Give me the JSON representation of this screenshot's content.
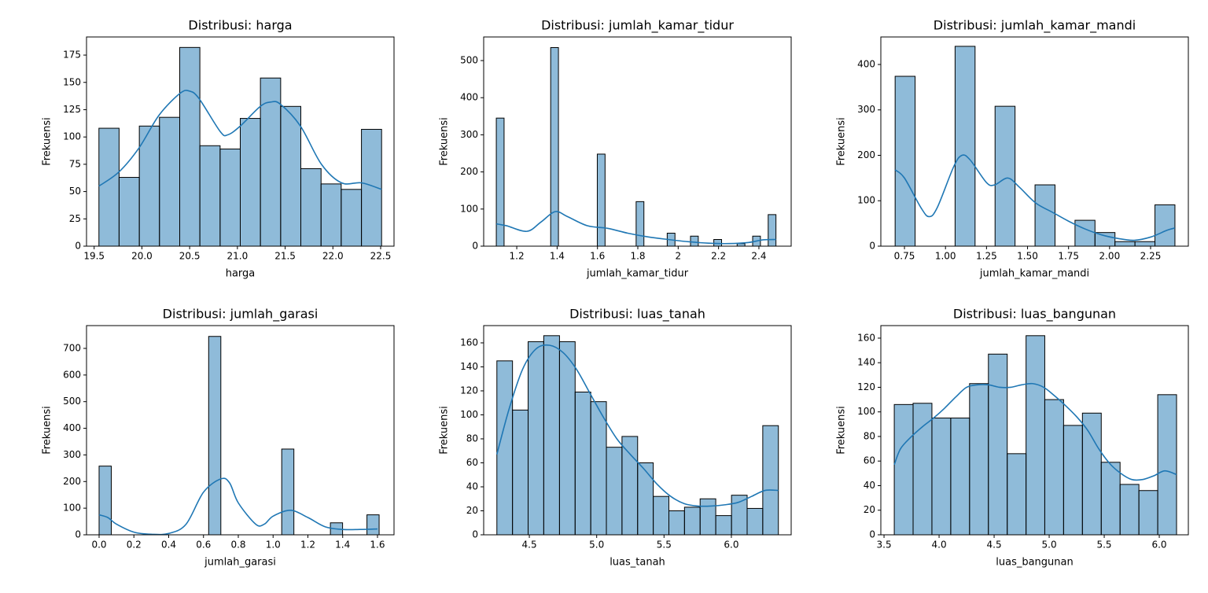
{
  "chart_data": [
    {
      "type": "histogram",
      "title": "Distribusi: harga",
      "xlabel": "harga",
      "ylabel": "Frekuensi",
      "color": "#1f77b4",
      "bins": [
        19.55,
        19.761,
        19.973,
        20.184,
        20.396,
        20.607,
        20.819,
        21.03,
        21.241,
        21.453,
        21.664,
        21.876,
        22.087,
        22.299,
        22.51
      ],
      "counts": [
        108,
        63,
        110,
        118,
        182,
        92,
        89,
        117,
        154,
        128,
        71,
        57,
        52,
        107
      ],
      "kde": {
        "x": [
          19.55,
          19.76,
          19.97,
          20.18,
          20.4,
          20.5,
          20.6,
          20.82,
          20.9,
          21.03,
          21.24,
          21.35,
          21.45,
          21.66,
          21.88,
          22.09,
          22.3,
          22.51
        ],
        "values": [
          55,
          68,
          90,
          120,
          140,
          142,
          135,
          105,
          102,
          110,
          128,
          132,
          130,
          110,
          75,
          58,
          58,
          52
        ]
      },
      "xlim": [
        19.42,
        22.64
      ],
      "ylim": [
        0,
        191.6
      ],
      "xticks": [
        19.5,
        {
          "value": 20,
          "label": "20.0"
        },
        20.5,
        {
          "value": 21,
          "label": "21.0"
        },
        21.5,
        {
          "value": 22,
          "label": "22.0"
        },
        22.5
      ],
      "yticks": [
        0,
        25,
        50,
        75,
        100,
        125,
        150,
        175
      ]
    },
    {
      "type": "histogram",
      "title": "Distribusi: jumlah_kamar_tidur",
      "xlabel": "jumlah_kamar_tidur",
      "ylabel": "Frekuensi",
      "color": "#1f77b4",
      "bins": [
        1.0986,
        1.1371,
        1.1756,
        1.2141,
        1.2526,
        1.2911,
        1.3296,
        1.3681,
        1.4066,
        1.4451,
        1.4836,
        1.5221,
        1.5606,
        1.5991,
        1.6376,
        1.6761,
        1.7146,
        1.7531,
        1.7916,
        1.8301,
        1.8686,
        1.9071,
        1.9456,
        1.9841,
        2.0226,
        2.0611,
        2.0996,
        2.1381,
        2.1766,
        2.2151,
        2.2536,
        2.2921,
        2.3306,
        2.3691,
        2.4076,
        2.4461,
        2.4846
      ],
      "counts": [
        345,
        0,
        0,
        0,
        0,
        0,
        0,
        535,
        0,
        0,
        0,
        0,
        0,
        248,
        0,
        0,
        0,
        0,
        120,
        0,
        0,
        0,
        35,
        0,
        0,
        27,
        0,
        0,
        18,
        0,
        0,
        7,
        0,
        27,
        0,
        85
      ],
      "kde": {
        "x": [
          1.0986,
          1.15,
          1.25,
          1.32,
          1.39,
          1.45,
          1.55,
          1.65,
          1.75,
          1.85,
          1.95,
          2.05,
          2.15,
          2.25,
          2.35,
          2.42,
          2.485
        ],
        "values": [
          60,
          55,
          40,
          65,
          93,
          80,
          55,
          48,
          35,
          25,
          18,
          12,
          8,
          7,
          10,
          17,
          18
        ]
      },
      "xlim": [
        1.036,
        2.56
      ],
      "ylim": [
        0,
        563.6
      ],
      "xticks": [
        1.2,
        1.4,
        1.6,
        1.8,
        2.0,
        2.2,
        2.4
      ],
      "yticks": [
        0,
        100,
        200,
        300,
        400,
        500
      ]
    },
    {
      "type": "histogram",
      "title": "Distribusi: jumlah_kamar_mandi",
      "xlabel": "jumlah_kamar_mandi",
      "ylabel": "Frekuensi",
      "color": "#1f77b4",
      "bins": [
        0.6931,
        0.8149,
        0.9367,
        1.0585,
        1.1803,
        1.3021,
        1.4239,
        1.5457,
        1.6675,
        1.7893,
        1.9111,
        2.0329,
        2.1547,
        2.2765,
        2.3983
      ],
      "counts": [
        374,
        0,
        0,
        440,
        0,
        308,
        0,
        135,
        0,
        57,
        30,
        10,
        10,
        91
      ],
      "kde": {
        "x": [
          0.693,
          0.75,
          0.85,
          0.9,
          0.95,
          1.05,
          1.1,
          1.15,
          1.25,
          1.3,
          1.38,
          1.45,
          1.55,
          1.65,
          1.75,
          1.85,
          1.95,
          2.05,
          2.15,
          2.25,
          2.35,
          2.398
        ],
        "values": [
          168,
          150,
          85,
          65,
          85,
          175,
          200,
          190,
          140,
          135,
          150,
          130,
          95,
          75,
          55,
          38,
          25,
          17,
          13,
          20,
          35,
          40
        ]
      },
      "xlim": [
        0.606,
        2.48
      ],
      "ylim": [
        0,
        460.6
      ],
      "xticks": [
        0.75,
        {
          "value": 1,
          "label": "1.00"
        },
        1.25,
        {
          "value": 1.5,
          "label": "1.50"
        },
        1.75,
        {
          "value": 2,
          "label": "2.00"
        },
        2.25
      ],
      "yticks": [
        0,
        100,
        200,
        300,
        400
      ]
    },
    {
      "type": "histogram",
      "title": "Distribusi: jumlah_garasi",
      "xlabel": "jumlah_garasi",
      "ylabel": "Frekuensi",
      "color": "#1f77b4",
      "bins": [
        0,
        0.07,
        0.1399,
        0.2099,
        0.2799,
        0.3499,
        0.4198,
        0.4898,
        0.5598,
        0.6297,
        0.6997,
        0.7697,
        0.8397,
        0.9096,
        0.9796,
        1.0496,
        1.1195,
        1.1895,
        1.2595,
        1.3294,
        1.3994,
        1.4694,
        1.5394,
        1.6094
      ],
      "counts": [
        258,
        0,
        0,
        0,
        0,
        0,
        0,
        0,
        0,
        745,
        0,
        0,
        0,
        0,
        0,
        322,
        0,
        0,
        0,
        45,
        0,
        0,
        75
      ],
      "kde": {
        "x": [
          0,
          0.05,
          0.1,
          0.2,
          0.3,
          0.4,
          0.5,
          0.6,
          0.7,
          0.75,
          0.8,
          0.9,
          0.95,
          1.0,
          1.1,
          1.2,
          1.3,
          1.4,
          1.5,
          1.6
        ],
        "values": [
          75,
          65,
          40,
          10,
          2,
          5,
          40,
          160,
          210,
          195,
          120,
          40,
          40,
          70,
          92,
          65,
          30,
          20,
          20,
          22
        ]
      },
      "xlim": [
        -0.0723,
        1.695
      ],
      "ylim": [
        0,
        785.6
      ],
      "xticks": [
        {
          "value": 0,
          "label": "0.0"
        },
        0.2,
        0.4,
        0.6,
        0.8,
        {
          "value": 1,
          "label": "1.0"
        },
        1.2,
        1.4,
        1.6
      ],
      "yticks": [
        0,
        100,
        200,
        300,
        400,
        500,
        600,
        700
      ]
    },
    {
      "type": "histogram",
      "title": "Distribusi: luas_tanah",
      "xlabel": "luas_tanah",
      "ylabel": "Frekuensi",
      "color": "#1f77b4",
      "bins": [
        4.259,
        4.375,
        4.491,
        4.607,
        4.724,
        4.84,
        4.956,
        5.072,
        5.188,
        5.304,
        5.42,
        5.536,
        5.652,
        5.768,
        5.884,
        6.001,
        6.117,
        6.233,
        6.349
      ],
      "counts": [
        145,
        104,
        161,
        166,
        161,
        119,
        111,
        73,
        82,
        60,
        32,
        20,
        23,
        30,
        16,
        33,
        22,
        91
      ],
      "kde": {
        "x": [
          4.259,
          4.35,
          4.45,
          4.55,
          4.65,
          4.75,
          4.85,
          4.95,
          5.05,
          5.15,
          5.25,
          5.35,
          5.45,
          5.55,
          5.65,
          5.75,
          5.85,
          5.95,
          6.05,
          6.15,
          6.25,
          6.349
        ],
        "values": [
          67,
          105,
          138,
          155,
          158,
          152,
          138,
          118,
          98,
          80,
          67,
          55,
          42,
          32,
          26,
          24,
          24,
          25,
          27,
          32,
          37,
          37
        ]
      },
      "xlim": [
        4.161,
        6.444
      ],
      "ylim": [
        0,
        174.4
      ],
      "xticks": [
        4.5,
        {
          "value": 5,
          "label": "5.0"
        },
        5.5,
        {
          "value": 6,
          "label": "6.0"
        }
      ],
      "yticks": [
        0,
        20,
        40,
        60,
        80,
        100,
        120,
        140,
        160
      ]
    },
    {
      "type": "histogram",
      "title": "Distribusi: luas_bangunan",
      "xlabel": "luas_bangunan",
      "ylabel": "Frekuensi",
      "color": "#1f77b4",
      "bins": [
        3.593,
        3.764,
        3.935,
        4.106,
        4.277,
        4.448,
        4.619,
        4.79,
        4.96,
        5.131,
        5.302,
        5.473,
        5.644,
        5.815,
        5.986,
        6.157
      ],
      "counts": [
        106,
        107,
        95,
        95,
        123,
        147,
        66,
        162,
        110,
        89,
        99,
        59,
        41,
        36,
        114
      ],
      "kde": {
        "x": [
          3.593,
          3.65,
          3.75,
          3.85,
          3.95,
          4.05,
          4.15,
          4.25,
          4.35,
          4.45,
          4.55,
          4.65,
          4.75,
          4.85,
          4.95,
          5.05,
          5.15,
          5.25,
          5.35,
          5.45,
          5.55,
          5.65,
          5.75,
          5.85,
          5.95,
          6.05,
          6.157
        ],
        "values": [
          57,
          70,
          80,
          88,
          95,
          103,
          112,
          120,
          122,
          122,
          120,
          120,
          122,
          123,
          120,
          113,
          105,
          96,
          85,
          70,
          58,
          50,
          45,
          45,
          48,
          52,
          49
        ]
      },
      "xlim": [
        3.471,
        6.264
      ],
      "ylim": [
        0,
        170.2
      ],
      "xticks": [
        3.5,
        {
          "value": 4,
          "label": "4.0"
        },
        4.5,
        {
          "value": 5,
          "label": "5.0"
        },
        5.5,
        {
          "value": 6,
          "label": "6.0"
        }
      ],
      "yticks": [
        0,
        20,
        40,
        60,
        80,
        100,
        120,
        140,
        160
      ]
    }
  ]
}
